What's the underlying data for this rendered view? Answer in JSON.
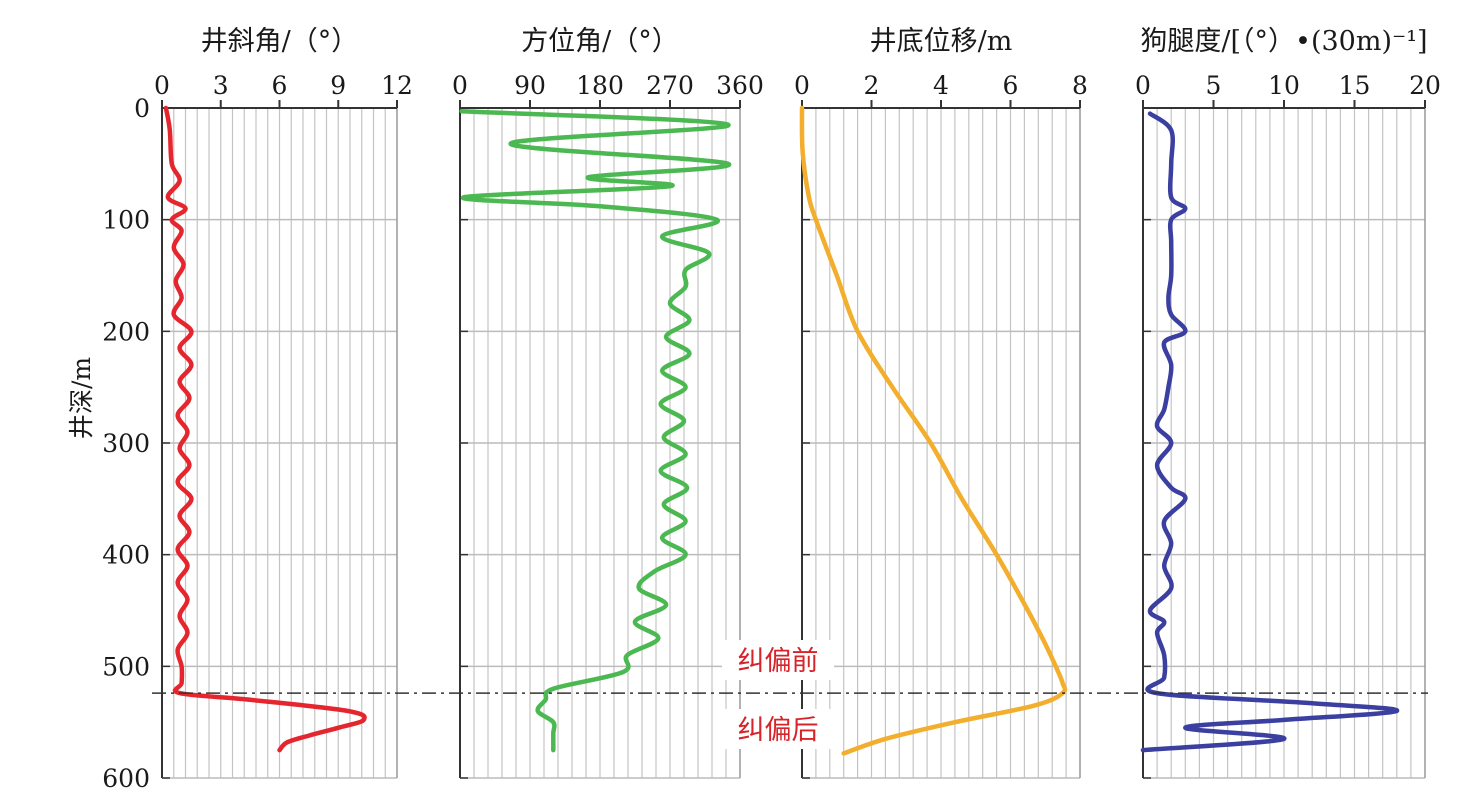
{
  "y_axis": {
    "label": "井深/m",
    "range": [
      0,
      600
    ],
    "ticks": [
      "0",
      "100",
      "200",
      "300",
      "400",
      "500",
      "600"
    ],
    "tick_values": [
      0,
      100,
      200,
      300,
      400,
      500,
      600
    ]
  },
  "annotations": {
    "before": "纠偏前",
    "after": "纠偏后",
    "divider_depth": 524,
    "color": "#d6242a",
    "line_style": "dash-dot"
  },
  "panels": [
    {
      "title": "井斜角/（°）",
      "tick_labels": [
        "0",
        "3",
        "6",
        "9",
        "12"
      ],
      "tick_values": [
        0,
        3,
        6,
        9,
        12
      ],
      "range": [
        0,
        12
      ],
      "color": "#e5262e"
    },
    {
      "title": "方位角/（°）",
      "tick_labels": [
        "0",
        "90",
        "180",
        "270",
        "360"
      ],
      "tick_values": [
        0,
        90,
        180,
        270,
        360
      ],
      "range": [
        0,
        360
      ],
      "color": "#4cb852"
    },
    {
      "title": "井底位移/m",
      "tick_labels": [
        "0",
        "2",
        "4",
        "6",
        "8"
      ],
      "tick_values": [
        0,
        2,
        4,
        6,
        8
      ],
      "range": [
        0,
        8
      ],
      "color": "#f2ae2c"
    },
    {
      "title": "狗腿度/[（°）•(30m)⁻¹]",
      "tick_labels": [
        "0",
        "5",
        "10",
        "15",
        "20"
      ],
      "tick_values": [
        0,
        5,
        10,
        15,
        20
      ],
      "range": [
        0,
        20
      ],
      "color": "#3b3fa0"
    }
  ],
  "chart_data": [
    {
      "type": "line",
      "title": "井斜角/（°）",
      "xlabel": "井斜角/（°）",
      "ylabel": "井深/m",
      "xlim": [
        0,
        12
      ],
      "ylim": [
        600,
        0
      ],
      "grid": true,
      "series": [
        {
          "name": "",
          "depth": [
            0,
            20,
            50,
            65,
            80,
            90,
            100,
            110,
            125,
            140,
            155,
            170,
            185,
            200,
            215,
            230,
            245,
            260,
            275,
            290,
            305,
            320,
            335,
            350,
            365,
            380,
            395,
            410,
            425,
            440,
            455,
            470,
            485,
            500,
            515,
            524,
            530,
            540,
            548,
            555,
            562,
            568,
            575
          ],
          "value": [
            0.2,
            0.4,
            0.5,
            0.9,
            0.3,
            1.2,
            0.5,
            1.0,
            0.6,
            1.1,
            0.7,
            1.0,
            0.6,
            1.5,
            0.9,
            1.5,
            0.9,
            1.4,
            0.8,
            1.3,
            0.9,
            1.4,
            0.8,
            1.5,
            0.9,
            1.4,
            0.8,
            1.3,
            0.8,
            1.3,
            0.9,
            1.3,
            0.8,
            1.0,
            1.0,
            0.9,
            4.5,
            9.5,
            10.3,
            9.0,
            7.5,
            6.4,
            6.0
          ]
        }
      ]
    },
    {
      "type": "line",
      "title": "方位角/（°）",
      "xlabel": "方位角/（°）",
      "ylabel": "井深/m",
      "xlim": [
        0,
        360
      ],
      "ylim": [
        600,
        0
      ],
      "grid": true,
      "series": [
        {
          "name": "",
          "depth": [
            3,
            15,
            32,
            50,
            62,
            70,
            80,
            88,
            100,
            115,
            130,
            145,
            160,
            175,
            190,
            205,
            220,
            235,
            250,
            265,
            280,
            295,
            310,
            325,
            340,
            355,
            370,
            385,
            400,
            415,
            430,
            445,
            460,
            475,
            490,
            505,
            520,
            530,
            540,
            550,
            560,
            575
          ],
          "value": [
            2,
            345,
            65,
            345,
            165,
            270,
            5,
            180,
            330,
            260,
            320,
            290,
            290,
            270,
            295,
            265,
            295,
            260,
            290,
            258,
            288,
            262,
            290,
            258,
            292,
            262,
            290,
            260,
            290,
            250,
            230,
            265,
            225,
            255,
            215,
            210,
            120,
            110,
            100,
            120,
            120,
            120
          ]
        }
      ]
    },
    {
      "type": "line",
      "title": "井底位移/m",
      "xlabel": "井底位移/m",
      "ylabel": "井深/m",
      "xlim": [
        0,
        8
      ],
      "ylim": [
        600,
        0
      ],
      "grid": true,
      "series": [
        {
          "name": "",
          "depth": [
            0,
            40,
            80,
            100,
            150,
            200,
            250,
            300,
            350,
            400,
            450,
            480,
            500,
            515,
            524,
            535,
            550,
            565,
            578
          ],
          "value": [
            0,
            0.02,
            0.2,
            0.4,
            1.0,
            1.6,
            2.6,
            3.7,
            4.6,
            5.6,
            6.5,
            7.0,
            7.3,
            7.5,
            7.5,
            6.7,
            4.4,
            2.4,
            1.2
          ]
        }
      ]
    },
    {
      "type": "line",
      "title": "狗腿度/[（°）•(30m)⁻¹]",
      "xlabel": "狗腿度/[（°）•(30m)⁻¹]",
      "ylabel": "井深/m",
      "xlim": [
        0,
        20
      ],
      "ylim": [
        600,
        0
      ],
      "grid": true,
      "series": [
        {
          "name": "",
          "depth": [
            5,
            20,
            50,
            80,
            90,
            100,
            120,
            150,
            170,
            185,
            200,
            210,
            230,
            250,
            270,
            285,
            300,
            320,
            340,
            350,
            370,
            390,
            410,
            430,
            450,
            460,
            470,
            490,
            510,
            524,
            533,
            540,
            548,
            555,
            565,
            575
          ],
          "value": [
            0.5,
            2.0,
            2.0,
            2.0,
            3.0,
            2.0,
            2.0,
            2.0,
            1.8,
            2.0,
            3.0,
            1.5,
            2.0,
            1.8,
            1.5,
            1.0,
            2.0,
            1.0,
            2.0,
            3.0,
            1.5,
            2.0,
            1.5,
            2.0,
            0.5,
            1.5,
            1.0,
            1.5,
            1.5,
            1.0,
            12.0,
            18.0,
            10.0,
            3.0,
            10.0,
            0.0
          ]
        }
      ]
    }
  ]
}
